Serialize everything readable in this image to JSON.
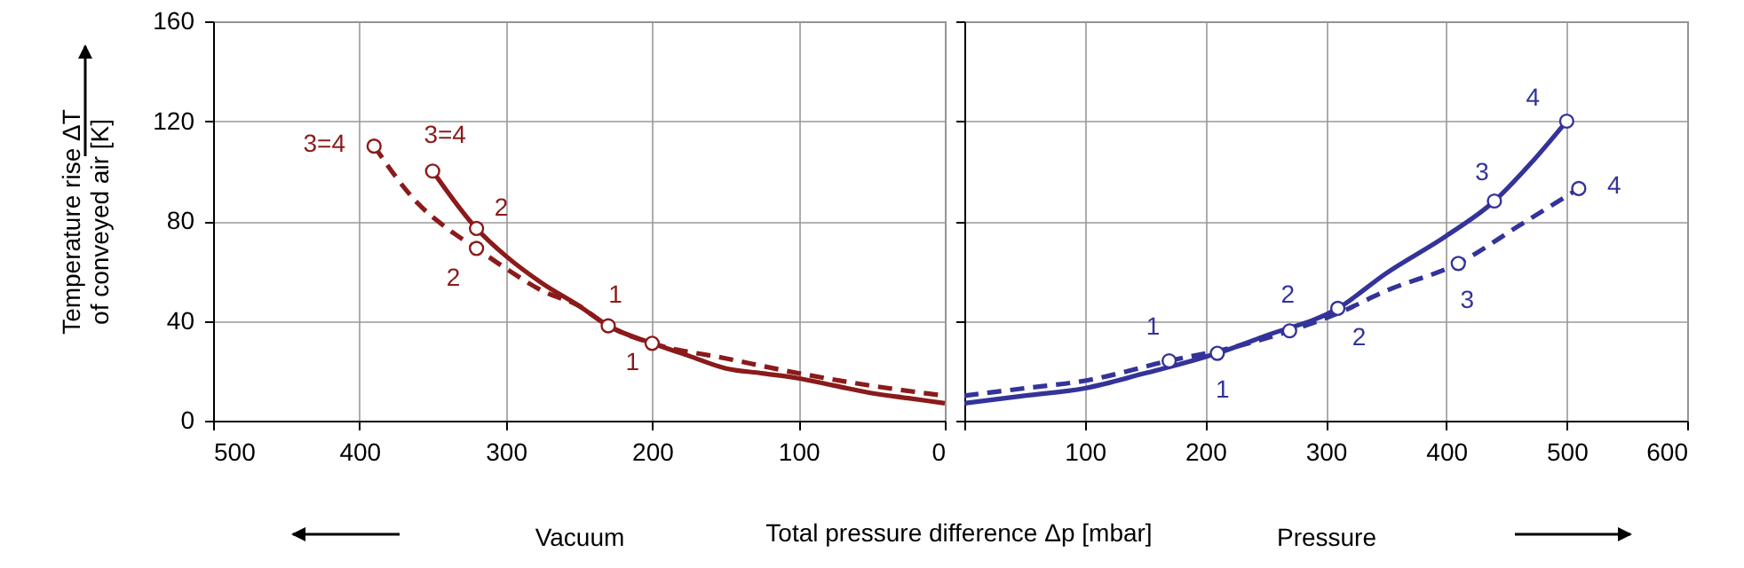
{
  "chart_data": [
    {
      "type": "line",
      "ylabel": "Temperature rise ΔT of conveyed air [K]",
      "xlabel": "Vacuum",
      "xlim": [
        500,
        0
      ],
      "xticks": [
        500,
        400,
        300,
        200,
        100,
        0
      ],
      "ylim": [
        0,
        160
      ],
      "yticks": [
        0,
        40,
        80,
        120,
        160
      ],
      "grid": true,
      "series": [
        {
          "type": "line",
          "color": "#8b1a1a",
          "line_style": "solid",
          "x": [
            350,
            320,
            300,
            275,
            250,
            230,
            200,
            175,
            150,
            125,
            100,
            75,
            50,
            25,
            0
          ],
          "values": [
            100,
            77,
            66,
            55,
            46,
            38,
            31,
            26,
            21,
            19,
            17,
            14,
            11,
            9,
            7
          ]
        },
        {
          "type": "line",
          "color": "#8b1a1a",
          "line_style": "dashed",
          "x": [
            390,
            360,
            340,
            320,
            300,
            275,
            250,
            230,
            200,
            150,
            100,
            50,
            0
          ],
          "values": [
            110,
            87,
            77,
            69,
            61,
            52,
            46,
            38,
            31,
            25,
            19,
            14,
            10
          ]
        },
        {
          "type": "scatter",
          "color": "#8b1a1a",
          "marker": "circle",
          "x": [
            350,
            320,
            230
          ],
          "values": [
            100,
            77,
            38
          ]
        },
        {
          "type": "scatter",
          "color": "#8b1a1a",
          "marker": "circle",
          "x": [
            390,
            320,
            200
          ],
          "values": [
            110,
            69,
            31
          ]
        }
      ],
      "annotations": [
        {
          "text": "3=4",
          "x": 390,
          "y": 110
        },
        {
          "text": "3=4",
          "x": 350,
          "y": 100
        },
        {
          "text": "2",
          "x": 320,
          "y": 77
        },
        {
          "text": "2",
          "x": 320,
          "y": 69
        },
        {
          "text": "1",
          "x": 230,
          "y": 38
        },
        {
          "text": "1",
          "x": 200,
          "y": 31
        },
        "Total pressure difference Δp [mbar]"
      ]
    },
    {
      "type": "line",
      "xlabel": "Pressure",
      "tick_labels": "x",
      "xlim": [
        0,
        600
      ],
      "xticks": [
        {
          "value": 0,
          "label": null
        },
        100,
        200,
        300,
        400,
        500,
        600
      ],
      "ylim": [
        0,
        160
      ],
      "yticks": [
        0,
        40,
        80,
        120,
        160
      ],
      "grid": true,
      "series": [
        {
          "type": "line",
          "color": "#33339a",
          "line_style": "solid",
          "x": [
            0,
            50,
            100,
            150,
            210,
            250,
            310,
            350,
            400,
            440,
            470,
            500
          ],
          "values": [
            7,
            10,
            13,
            19,
            27,
            34,
            45,
            59,
            74,
            88,
            103,
            120
          ]
        },
        {
          "type": "line",
          "color": "#33339a",
          "line_style": "dashed",
          "x": [
            0,
            50,
            100,
            170,
            220,
            270,
            310,
            350,
            410,
            460,
            510
          ],
          "values": [
            10,
            13,
            16,
            24,
            29,
            36,
            43,
            52,
            63,
            78,
            93
          ]
        },
        {
          "type": "scatter",
          "color": "#33339a",
          "marker": "circle",
          "x": [
            210,
            310,
            440,
            500
          ],
          "values": [
            27,
            45,
            88,
            120
          ]
        },
        {
          "type": "scatter",
          "color": "#33339a",
          "marker": "circle",
          "x": [
            170,
            270,
            410,
            510
          ],
          "values": [
            24,
            36,
            63,
            93
          ]
        }
      ],
      "annotations": [
        {
          "text": "4",
          "x": 500,
          "y": 120
        },
        {
          "text": "3",
          "x": 440,
          "y": 88
        },
        {
          "text": "4",
          "x": 510,
          "y": 93
        },
        {
          "text": "2",
          "x": 270,
          "y": 36
        },
        {
          "text": "3",
          "x": 410,
          "y": 63
        },
        {
          "text": "1",
          "x": 170,
          "y": 24
        },
        {
          "text": "2",
          "x": 310,
          "y": 45
        },
        {
          "text": "1",
          "x": 210,
          "y": 27
        }
      ]
    }
  ]
}
